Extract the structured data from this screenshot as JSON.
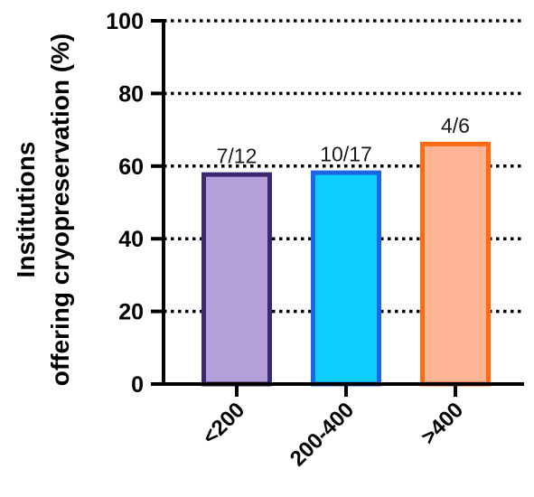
{
  "chart_data": {
    "type": "bar",
    "ylabel_lines": [
      "Institutions",
      "offering cryopreservation (%)"
    ],
    "ylim": [
      0,
      100
    ],
    "yticks": [
      0,
      20,
      40,
      60,
      80,
      100
    ],
    "grid": "horizontal-dotted",
    "categories": [
      "<200",
      "200-400",
      ">400"
    ],
    "values": [
      58.3,
      58.8,
      66.7
    ],
    "data_labels": [
      "7/12",
      "10/17",
      "4/6"
    ],
    "fill_colors": [
      "#b49fda",
      "#0ccfff",
      "#ffb496"
    ],
    "stroke_colors": [
      "#3c2870",
      "#1a66e6",
      "#ff6a14"
    ]
  }
}
